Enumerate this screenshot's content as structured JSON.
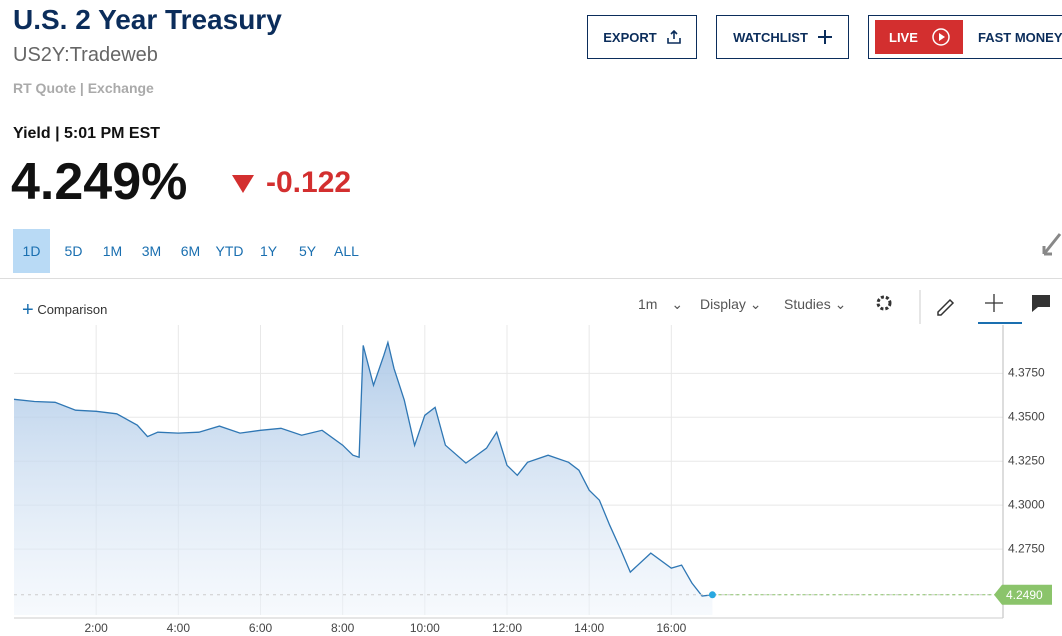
{
  "header": {
    "title": "U.S. 2 Year Treasury",
    "symbol": "US2Y:Tradeweb",
    "quote_source": "RT Quote | Exchange",
    "yield_time": "Yield | 5:01 PM EST",
    "price": "4.249%",
    "change": "-0.122"
  },
  "buttons": {
    "export": "EXPORT",
    "watchlist": "WATCHLIST",
    "live": "LIVE",
    "show": "FAST MONEY"
  },
  "ranges": [
    "1D",
    "5D",
    "1M",
    "3M",
    "6M",
    "YTD",
    "1Y",
    "5Y",
    "ALL"
  ],
  "toolbar": {
    "comparison": "Comparison",
    "interval": "1m",
    "display": "Display",
    "studies": "Studies"
  },
  "chart_data": {
    "type": "line",
    "color": "#2f77b4",
    "grid": true,
    "x": [
      0,
      0.5,
      1,
      1.5,
      2,
      2.5,
      3,
      3.25,
      3.5,
      4,
      4.5,
      5,
      5.5,
      6,
      6.5,
      7,
      7.5,
      8,
      8.25,
      8.4,
      8.5,
      8.75,
      9,
      9.1,
      9.25,
      9.5,
      9.75,
      10,
      10.25,
      10.5,
      11,
      11.5,
      11.75,
      12,
      12.25,
      12.5,
      13,
      13.5,
      13.75,
      14,
      14.25,
      14.5,
      14.75,
      15,
      15.5,
      16,
      16.25,
      16.5,
      16.75,
      17
    ],
    "values": [
      4.3602,
      4.359,
      4.3585,
      4.354,
      4.3534,
      4.352,
      4.3455,
      4.339,
      4.3415,
      4.341,
      4.3415,
      4.345,
      4.341,
      4.3426,
      4.3437,
      4.3398,
      4.3426,
      4.3341,
      4.3284,
      4.3273,
      4.3909,
      4.3682,
      4.3852,
      4.3926,
      4.3778,
      4.3597,
      4.334,
      4.3511,
      4.3557,
      4.3341,
      4.3239,
      4.3324,
      4.3415,
      4.3227,
      4.317,
      4.3244,
      4.3284,
      4.3244,
      4.3199,
      4.3085,
      4.3028,
      4.2886,
      4.2756,
      4.2619,
      4.2727,
      4.2642,
      4.2659,
      4.2557,
      4.2483,
      4.249
    ],
    "xlim": [
      0,
      24
    ],
    "xticks": [
      {
        "value": 2,
        "label": "2:00"
      },
      {
        "value": 4,
        "label": "4:00"
      },
      {
        "value": 6,
        "label": "6:00"
      },
      {
        "value": 8,
        "label": "8:00"
      },
      {
        "value": 10,
        "label": "10:00"
      },
      {
        "value": 12,
        "label": "12:00"
      },
      {
        "value": 14,
        "label": "14:00"
      },
      {
        "value": 16,
        "label": "16:00"
      }
    ],
    "ylim": [
      4.2375,
      4.4025
    ],
    "yticks": [
      {
        "value": 4.275,
        "label": "4.2750"
      },
      {
        "value": 4.3,
        "label": "4.3000"
      },
      {
        "value": 4.325,
        "label": "4.3250"
      },
      {
        "value": 4.35,
        "label": "4.3500"
      },
      {
        "value": 4.375,
        "label": "4.3750"
      }
    ],
    "marker": {
      "value": 4.249,
      "label": "4.2490",
      "color": "#8bc46b"
    }
  }
}
